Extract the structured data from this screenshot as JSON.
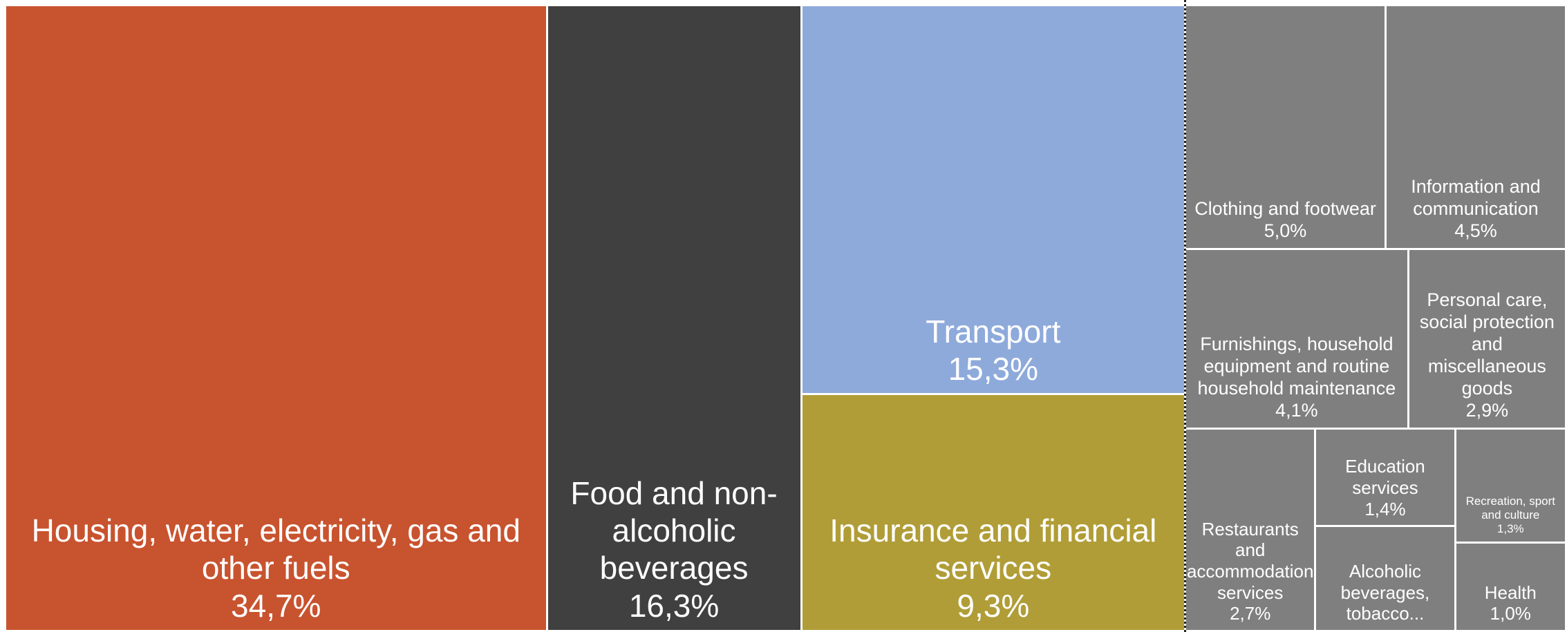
{
  "chart_data": {
    "type": "treemap",
    "categories": [
      "Housing, water, electricity, gas and other fuels",
      "Food and non-alcoholic beverages",
      "Transport",
      "Insurance and financial services",
      "Clothing and footwear",
      "Information and communication",
      "Furnishings, household equipment and routine household maintenance",
      "Personal care, social protection and miscellaneous goods",
      "Restaurants and accommodation services",
      "Education services",
      "Alcoholic beverages, tobacco...",
      "Recreation, sport and culture",
      "Health"
    ],
    "values": [
      34.7,
      16.3,
      15.3,
      9.3,
      5.0,
      4.5,
      4.1,
      2.9,
      2.7,
      1.4,
      1.5,
      1.3,
      1.0
    ],
    "value_labels": [
      "34,7%",
      "16,3%",
      "15,3%",
      "9,3%",
      "5,0%",
      "4,5%",
      "4,1%",
      "2,9%",
      "2,7%",
      "1,4%",
      null,
      "1,3%",
      "1,0%"
    ],
    "colors": [
      "#c8532f",
      "#404040",
      "#8eaadb",
      "#b09d37",
      "#7f7f7f",
      "#7f7f7f",
      "#7f7f7f",
      "#7f7f7f",
      "#7f7f7f",
      "#7f7f7f",
      "#7f7f7f",
      "#7f7f7f",
      "#7f7f7f"
    ]
  }
}
